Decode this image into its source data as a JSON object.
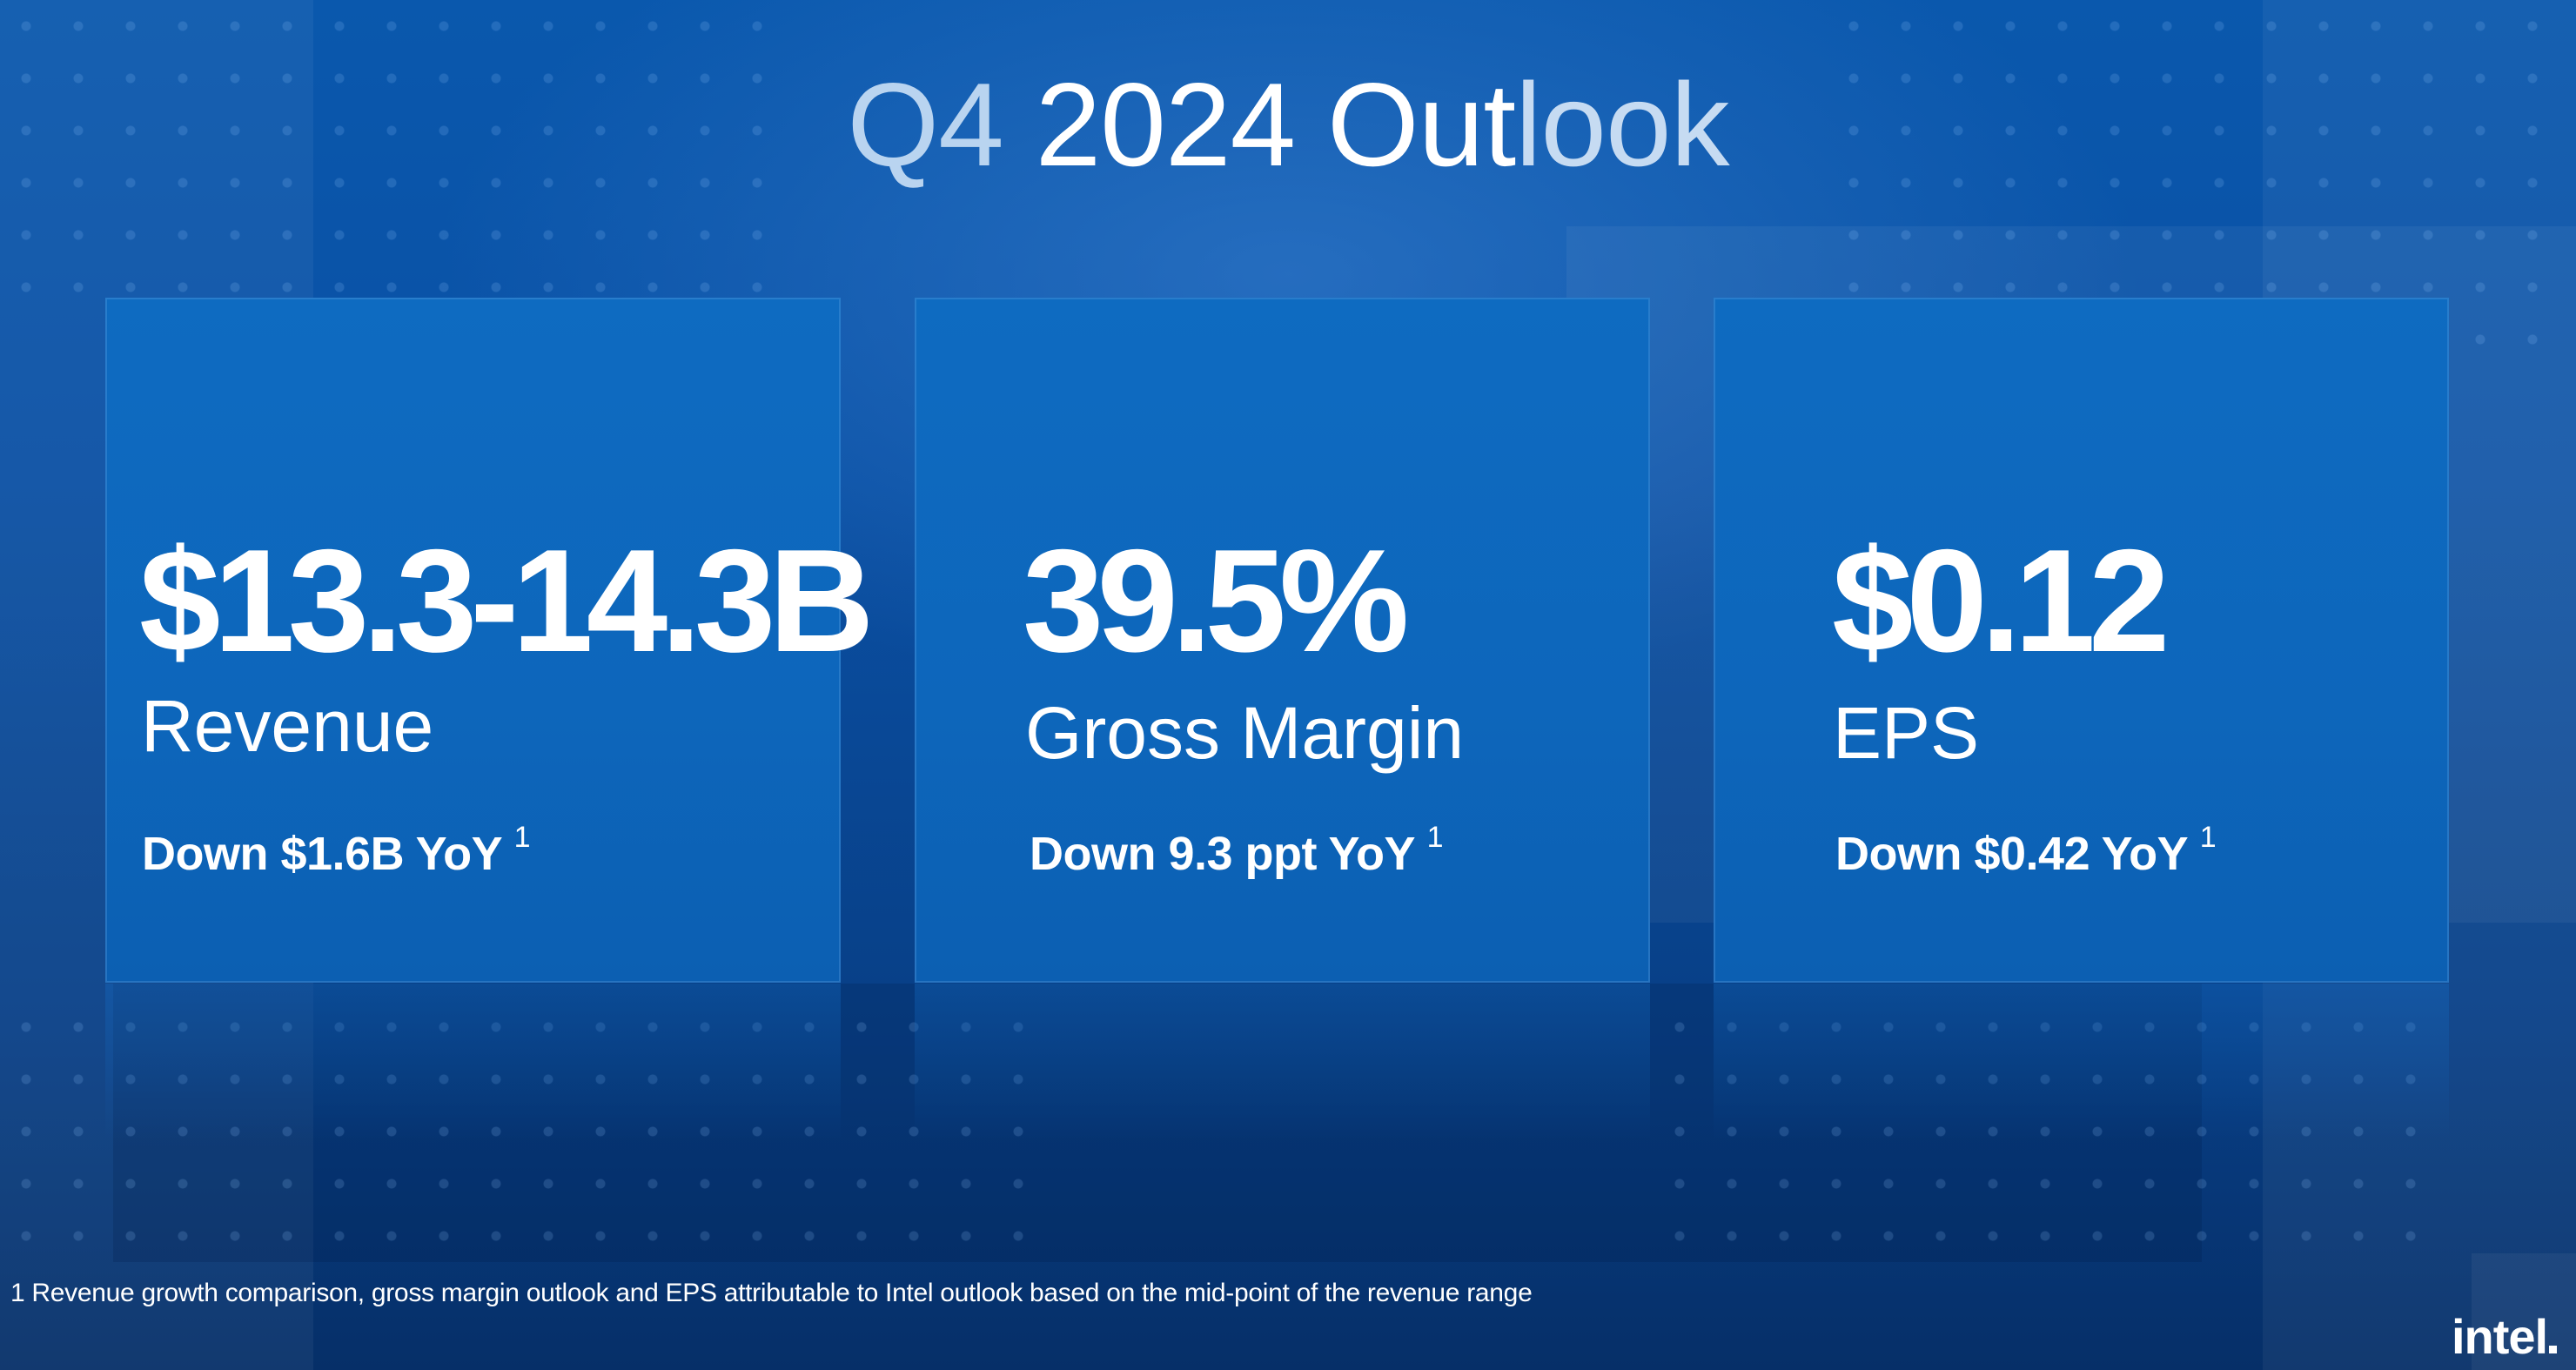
{
  "slide": {
    "title_part1": "Q4",
    "title_part2": " 2024 Out",
    "title_part3": "look"
  },
  "cards": [
    {
      "value": "$13.3-14.3B",
      "label": "Revenue",
      "delta": "Down $1.6B YoY",
      "footnote_ref": "1"
    },
    {
      "value": "39.5%",
      "label": "Gross Margin",
      "delta": "Down 9.3 ppt YoY",
      "footnote_ref": "1"
    },
    {
      "value": "$0.12",
      "label": "EPS",
      "delta": "Down $0.42 YoY",
      "footnote_ref": "1"
    }
  ],
  "footnote": "1 Revenue growth comparison, gross margin outlook and EPS attributable to Intel outlook based on the mid-point of the revenue range",
  "logo": {
    "text": "intel"
  },
  "colors": {
    "background": "#0a50a4",
    "card": "#0d66bb",
    "text": "#ffffff",
    "title_accent": "#b9d4f0"
  }
}
